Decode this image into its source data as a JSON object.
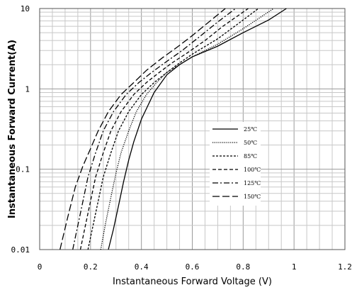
{
  "chart_data": {
    "type": "line",
    "xlabel": "Instantaneous Forward Voltage (V)",
    "ylabel": "Instantaneous Forward Current(A)",
    "xlim": [
      0,
      1.2
    ],
    "ylim": [
      0.01,
      10
    ],
    "y_scale": "log",
    "grid": true,
    "legend_position": "center-right",
    "x_ticks": [
      "0",
      "0.2",
      "0.4",
      "0.6",
      "0.8",
      "1",
      "1.2"
    ],
    "y_ticks": [
      {
        "value": 10,
        "label": "10"
      },
      {
        "value": 1,
        "label": "1"
      },
      {
        "value": 0.1,
        "label": "0.1"
      },
      {
        "value": 0.01,
        "label": "0.01"
      }
    ],
    "series": [
      {
        "name": "25℃",
        "dash": "",
        "x": [
          0.27,
          0.29,
          0.31,
          0.33,
          0.35,
          0.37,
          0.4,
          0.45,
          0.5,
          0.55,
          0.6,
          0.7,
          0.8,
          0.9,
          0.97
        ],
        "y": [
          0.01,
          0.018,
          0.035,
          0.07,
          0.13,
          0.22,
          0.42,
          0.9,
          1.5,
          2.0,
          2.5,
          3.4,
          5.0,
          7.2,
          10
        ]
      },
      {
        "name": "50℃",
        "dash": "1.2,1.6",
        "x": [
          0.24,
          0.26,
          0.28,
          0.3,
          0.32,
          0.35,
          0.38,
          0.42,
          0.46,
          0.5,
          0.55,
          0.6,
          0.7,
          0.8,
          0.92
        ],
        "y": [
          0.01,
          0.022,
          0.045,
          0.09,
          0.16,
          0.3,
          0.52,
          0.85,
          1.2,
          1.6,
          2.0,
          2.5,
          3.6,
          5.6,
          10
        ]
      },
      {
        "name": "85℃",
        "dash": "3,2",
        "x": [
          0.19,
          0.21,
          0.23,
          0.25,
          0.28,
          0.31,
          0.35,
          0.4,
          0.45,
          0.5,
          0.55,
          0.6,
          0.7,
          0.8,
          0.86
        ],
        "y": [
          0.01,
          0.02,
          0.04,
          0.08,
          0.16,
          0.3,
          0.52,
          0.85,
          1.2,
          1.6,
          2.1,
          2.7,
          4.2,
          7.2,
          10
        ]
      },
      {
        "name": "100℃",
        "dash": "5,3",
        "x": [
          0.16,
          0.18,
          0.2,
          0.22,
          0.25,
          0.28,
          0.32,
          0.37,
          0.42,
          0.47,
          0.52,
          0.58,
          0.65,
          0.72,
          0.82
        ],
        "y": [
          0.01,
          0.02,
          0.04,
          0.08,
          0.16,
          0.3,
          0.52,
          0.85,
          1.2,
          1.6,
          2.1,
          2.8,
          4.0,
          6.0,
          10
        ]
      },
      {
        "name": "125℃",
        "dash": "8,3,2,3",
        "x": [
          0.13,
          0.15,
          0.17,
          0.19,
          0.22,
          0.25,
          0.29,
          0.34,
          0.39,
          0.44,
          0.5,
          0.56,
          0.63,
          0.7,
          0.77
        ],
        "y": [
          0.01,
          0.02,
          0.04,
          0.08,
          0.16,
          0.3,
          0.52,
          0.85,
          1.2,
          1.6,
          2.2,
          3.0,
          4.5,
          6.8,
          10
        ]
      },
      {
        "name": "150℃",
        "dash": "10,4",
        "x": [
          0.08,
          0.11,
          0.14,
          0.17,
          0.2,
          0.23,
          0.27,
          0.32,
          0.37,
          0.42,
          0.48,
          0.54,
          0.6,
          0.66,
          0.73
        ],
        "y": [
          0.01,
          0.025,
          0.06,
          0.11,
          0.18,
          0.3,
          0.52,
          0.85,
          1.2,
          1.7,
          2.4,
          3.3,
          4.6,
          6.6,
          10
        ]
      }
    ]
  }
}
